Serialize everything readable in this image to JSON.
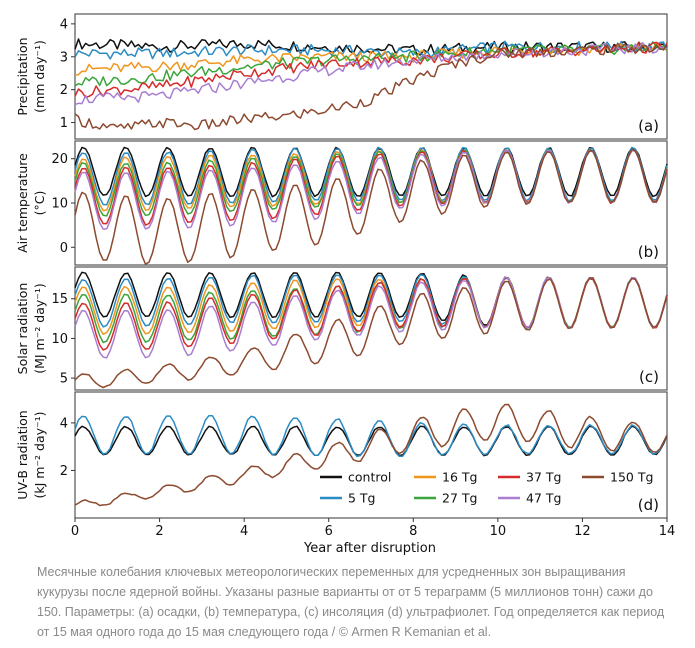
{
  "figure": {
    "xlabel": "Year after disruption",
    "x_ticks": [
      "0",
      "2",
      "4",
      "6",
      "8",
      "10",
      "12",
      "14"
    ],
    "x_range": [
      0,
      14
    ]
  },
  "legend": {
    "entries": [
      {
        "label": "control",
        "color": "#111111"
      },
      {
        "label": "16 Tg",
        "color": "#f0961e"
      },
      {
        "label": "37 Tg",
        "color": "#d62b2b"
      },
      {
        "label": "150 Tg",
        "color": "#8c4a2f"
      },
      {
        "label": "5 Tg",
        "color": "#2b8cc4"
      },
      {
        "label": "27 Tg",
        "color": "#3aa53a"
      },
      {
        "label": "47 Tg",
        "color": "#a97ed1"
      }
    ]
  },
  "chart_data": [
    {
      "type": "line",
      "panel": "(a)",
      "ylabel_line1": "Precipitation",
      "ylabel_line2": "(mm day⁻¹)",
      "ylim": [
        0.5,
        4.3
      ],
      "y_ticks": [
        1,
        2,
        3,
        4
      ],
      "x_range": [
        0,
        14
      ],
      "series": [
        {
          "name": "control",
          "color": "#111111",
          "x": [
            0,
            2,
            4,
            6,
            8,
            10,
            12,
            14
          ],
          "y": [
            3.4,
            3.3,
            3.4,
            3.3,
            3.2,
            3.3,
            3.3,
            3.3
          ]
        },
        {
          "name": "5 Tg",
          "color": "#2b8cc4",
          "x": [
            0,
            2,
            4,
            6,
            8,
            10,
            12,
            14
          ],
          "y": [
            3.1,
            3.1,
            3.2,
            3.2,
            3.1,
            3.3,
            3.3,
            3.3
          ]
        },
        {
          "name": "16 Tg",
          "color": "#f0961e",
          "x": [
            0,
            2,
            4,
            6,
            8,
            10,
            12,
            14
          ],
          "y": [
            2.6,
            2.7,
            2.9,
            3.0,
            3.0,
            3.2,
            3.2,
            3.3
          ]
        },
        {
          "name": "27 Tg",
          "color": "#3aa53a",
          "x": [
            0,
            2,
            4,
            6,
            8,
            10,
            12,
            14
          ],
          "y": [
            2.2,
            2.4,
            2.7,
            2.9,
            3.0,
            3.2,
            3.2,
            3.3
          ]
        },
        {
          "name": "37 Tg",
          "color": "#d62b2b",
          "x": [
            0,
            2,
            4,
            6,
            8,
            10,
            12,
            14
          ],
          "y": [
            1.9,
            2.1,
            2.5,
            2.8,
            2.9,
            3.1,
            3.2,
            3.3
          ]
        },
        {
          "name": "47 Tg",
          "color": "#a97ed1",
          "x": [
            0,
            2,
            4,
            6,
            8,
            10,
            12,
            14
          ],
          "y": [
            1.7,
            1.8,
            2.2,
            2.6,
            2.9,
            3.1,
            3.2,
            3.3
          ]
        },
        {
          "name": "150 Tg",
          "color": "#8c4a2f",
          "x": [
            0,
            1,
            2,
            3,
            4,
            5,
            6,
            7,
            8,
            9,
            10,
            12,
            14
          ],
          "y": [
            1.1,
            0.8,
            1.0,
            0.9,
            1.1,
            1.2,
            1.4,
            1.7,
            2.3,
            2.8,
            3.1,
            3.2,
            3.3
          ]
        }
      ]
    },
    {
      "type": "line",
      "panel": "(b)",
      "ylabel_line1": "Air temperature",
      "ylabel_line2": "(°C)",
      "ylim": [
        -4,
        24
      ],
      "y_ticks": [
        0,
        10,
        20
      ],
      "seasonal": true,
      "series": [
        {
          "name": "control",
          "color": "#111111",
          "mean": [
            17,
            17,
            17,
            17,
            17,
            17,
            17,
            17
          ],
          "amplitude": [
            5.5,
            5.5,
            5.5,
            5.5,
            5.5,
            5.5,
            5.5,
            5.5
          ]
        },
        {
          "name": "5 Tg",
          "color": "#2b8cc4",
          "mean": [
            15.5,
            15.5,
            16,
            16.5,
            16.5,
            16.5,
            16.5,
            16.5
          ],
          "amplitude": [
            6,
            6,
            6,
            6,
            6,
            6,
            6,
            6
          ]
        },
        {
          "name": "16 Tg",
          "color": "#f0961e",
          "mean": [
            14,
            14.5,
            15,
            15.5,
            16,
            16,
            16,
            16
          ],
          "amplitude": [
            6,
            6,
            6,
            6,
            6,
            6,
            6,
            6
          ]
        },
        {
          "name": "27 Tg",
          "color": "#3aa53a",
          "mean": [
            13,
            13,
            14,
            15,
            16,
            16,
            16,
            16
          ],
          "amplitude": [
            6,
            6,
            6,
            6,
            6,
            6,
            6,
            6
          ]
        },
        {
          "name": "37 Tg",
          "color": "#d62b2b",
          "mean": [
            11.5,
            11.5,
            12.5,
            14,
            15.5,
            16,
            16,
            16
          ],
          "amplitude": [
            6.5,
            6.5,
            6.5,
            6.5,
            6,
            6,
            6,
            6
          ]
        },
        {
          "name": "47 Tg",
          "color": "#a97ed1",
          "mean": [
            10.5,
            10.5,
            11.5,
            13,
            15,
            16,
            16,
            16
          ],
          "amplitude": [
            6.5,
            6.5,
            6.5,
            6.5,
            6,
            6,
            6,
            6
          ]
        },
        {
          "name": "150 Tg",
          "color": "#8c4a2f",
          "mean": [
            5,
            3.5,
            5.5,
            8,
            13,
            15.5,
            16,
            16
          ],
          "amplitude": [
            7.5,
            7.5,
            7.5,
            7,
            6.5,
            6,
            6,
            6
          ]
        }
      ]
    },
    {
      "type": "line",
      "panel": "(c)",
      "ylabel_line1": "Solar radiation",
      "ylabel_line2": "(MJ m⁻² day⁻¹)",
      "ylim": [
        3.5,
        19
      ],
      "y_ticks": [
        5,
        10,
        15
      ],
      "seasonal": true,
      "series": [
        {
          "name": "control",
          "color": "#111111",
          "mean": [
            15.5,
            15.5,
            15.5,
            15.5,
            15.5,
            14.5,
            14.5,
            14.5
          ],
          "amplitude": [
            2.8,
            2.8,
            2.8,
            2.8,
            2.8,
            3.2,
            3.2,
            3.2
          ]
        },
        {
          "name": "5 Tg",
          "color": "#2b8cc4",
          "mean": [
            14.5,
            14.5,
            15,
            15,
            15,
            14.5,
            14.5,
            14.5
          ],
          "amplitude": [
            3,
            3,
            3,
            3,
            3,
            3.2,
            3.2,
            3.2
          ]
        },
        {
          "name": "16 Tg",
          "color": "#f0961e",
          "mean": [
            13.5,
            13.5,
            14,
            14.5,
            14.5,
            14.5,
            14.5,
            14.5
          ],
          "amplitude": [
            3,
            3,
            3,
            3,
            3,
            3.2,
            3.2,
            3.2
          ]
        },
        {
          "name": "27 Tg",
          "color": "#3aa53a",
          "mean": [
            12.5,
            12.5,
            13,
            13.5,
            14.5,
            14.5,
            14.5,
            14.5
          ],
          "amplitude": [
            3,
            3,
            3,
            3,
            3,
            3.2,
            3.2,
            3.2
          ]
        },
        {
          "name": "37 Tg",
          "color": "#d62b2b",
          "mean": [
            11.5,
            11.5,
            12.5,
            13.5,
            14.5,
            14.5,
            14.5,
            14.5
          ],
          "amplitude": [
            3,
            3,
            3,
            3,
            3,
            3.2,
            3.2,
            3.2
          ]
        },
        {
          "name": "47 Tg",
          "color": "#a97ed1",
          "mean": [
            10.5,
            10.5,
            11.5,
            13,
            14,
            14.5,
            14.5,
            14.5
          ],
          "amplitude": [
            3,
            3,
            3,
            3,
            3,
            3.2,
            3.2,
            3.2
          ]
        },
        {
          "name": "150 Tg",
          "color": "#8c4a2f",
          "mean": [
            4.5,
            5.5,
            7,
            9.5,
            12.5,
            14,
            14.5,
            14.5
          ],
          "amplitude": [
            1,
            1,
            1.5,
            2.5,
            3,
            3.2,
            3.2,
            3.2
          ]
        }
      ]
    },
    {
      "type": "line",
      "panel": "(d)",
      "ylabel_line1": "UV-B radiation",
      "ylabel_line2": "(kJ m⁻² day⁻¹)",
      "ylim": [
        0,
        5.3
      ],
      "y_ticks": [
        2,
        4
      ],
      "seasonal": true,
      "series": [
        {
          "name": "control",
          "color": "#111111",
          "mean": [
            3.25,
            3.25,
            3.25,
            3.25,
            3.25,
            3.25,
            3.25,
            3.25
          ],
          "amplitude": [
            0.6,
            0.6,
            0.6,
            0.6,
            0.6,
            0.6,
            0.6,
            0.6
          ]
        },
        {
          "name": "5 Tg",
          "color": "#2b8cc4",
          "mean": [
            3.5,
            3.5,
            3.5,
            3.4,
            3.3,
            3.3,
            3.3,
            3.3
          ],
          "amplitude": [
            0.8,
            0.8,
            0.8,
            0.8,
            0.7,
            0.6,
            0.6,
            0.6
          ]
        },
        {
          "name": "150 Tg",
          "color": "#8c4a2f",
          "mean": [
            0.5,
            1.1,
            1.8,
            2.6,
            3.5,
            4.1,
            3.6,
            3.3
          ],
          "amplitude": [
            0.15,
            0.2,
            0.3,
            0.45,
            0.7,
            0.75,
            0.7,
            0.6
          ]
        }
      ]
    }
  ],
  "caption": "Месячные колебания ключевых метеорологических переменных для усредненных зон выращивания кукурузы после ядерной войны. Указаны разные варианты от от 5 тераграмм (5 миллионов тонн) сажи до 150. Параметры: (a) осадки, (b) температура, (c) инсоляция (d) ультрафиолет. Год определяется как период от 15 мая одного года до 15 мая следующего года / © Armen R Kemanian et al."
}
